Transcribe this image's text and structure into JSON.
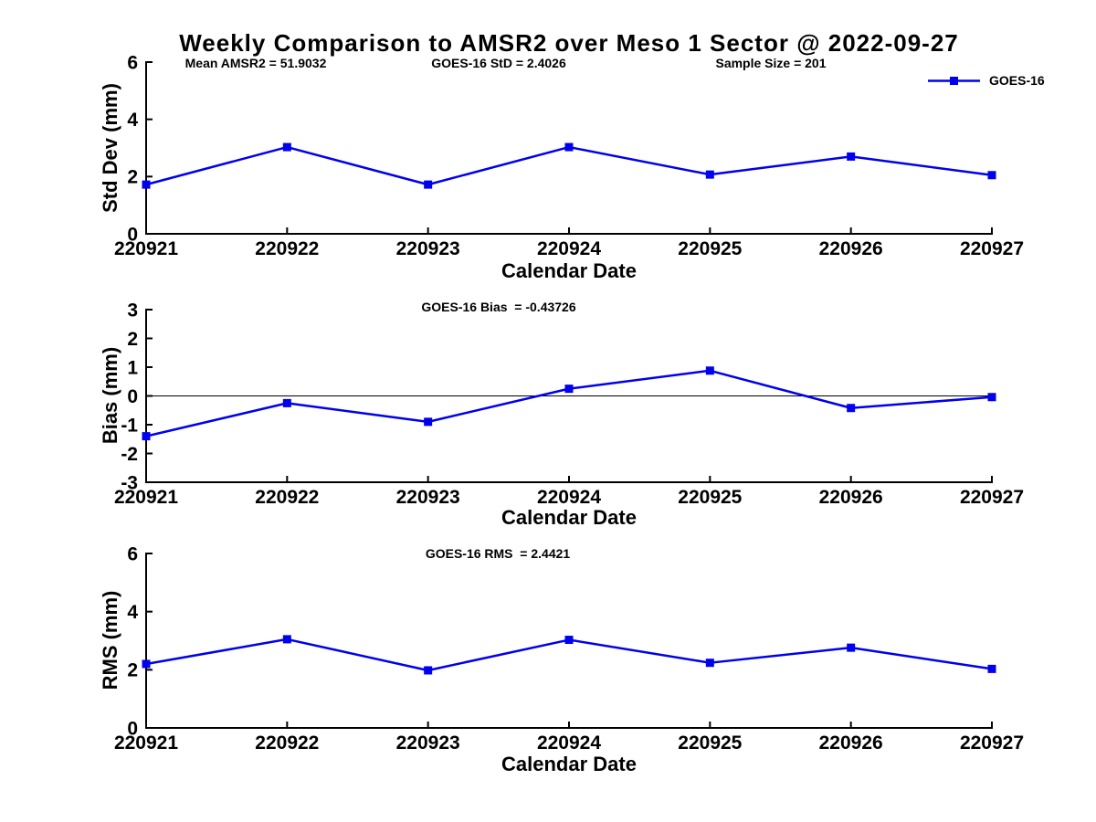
{
  "page": {
    "title": "Weekly Comparison to AMSR2 over Meso 1 Sector @ 2022-09-27"
  },
  "legend": {
    "label": "GOES-16"
  },
  "colors": {
    "series": "#0000EE",
    "axis": "#000000",
    "text": "#000000",
    "background": "#FFFFFF"
  },
  "chart_data": [
    {
      "type": "line",
      "name": "std-dev",
      "categories": [
        "220921",
        "220922",
        "220923",
        "220924",
        "220925",
        "220926",
        "220927"
      ],
      "series": [
        {
          "name": "GOES-16",
          "values": [
            1.72,
            3.03,
            1.72,
            3.03,
            2.07,
            2.7,
            2.05
          ]
        }
      ],
      "xlabel": "Calendar Date",
      "ylabel": "Std Dev (mm)",
      "ylim": [
        0,
        6
      ],
      "yticks": [
        0,
        2,
        4,
        6
      ],
      "grid": false,
      "marker": "square",
      "legend_position": "top-right",
      "annotations": [
        "Mean AMSR2 = 51.9032",
        "GOES-16 StD = 2.4026",
        "Sample Size = 201"
      ]
    },
    {
      "type": "line",
      "name": "bias",
      "categories": [
        "220921",
        "220922",
        "220923",
        "220924",
        "220925",
        "220926",
        "220927"
      ],
      "series": [
        {
          "name": "GOES-16",
          "values": [
            -1.4,
            -0.25,
            -0.9,
            0.25,
            0.88,
            -0.42,
            -0.04
          ]
        }
      ],
      "xlabel": "Calendar Date",
      "ylabel": "Bias (mm)",
      "ylim": [
        -3,
        3
      ],
      "yticks": [
        3,
        2,
        1,
        0,
        -1,
        -2,
        -3
      ],
      "grid": false,
      "zero_line": true,
      "marker": "square",
      "annotations": [
        "GOES-16 Bias  = -0.43726"
      ]
    },
    {
      "type": "line",
      "name": "rms",
      "categories": [
        "220921",
        "220922",
        "220923",
        "220924",
        "220925",
        "220926",
        "220927"
      ],
      "series": [
        {
          "name": "GOES-16",
          "values": [
            2.2,
            3.05,
            1.98,
            3.03,
            2.24,
            2.76,
            2.03
          ]
        }
      ],
      "xlabel": "Calendar Date",
      "ylabel": "RMS (mm)",
      "ylim": [
        0,
        6
      ],
      "yticks": [
        0,
        2,
        4,
        6
      ],
      "grid": false,
      "marker": "square",
      "annotations": [
        "GOES-16 RMS  = 2.4421"
      ]
    }
  ]
}
